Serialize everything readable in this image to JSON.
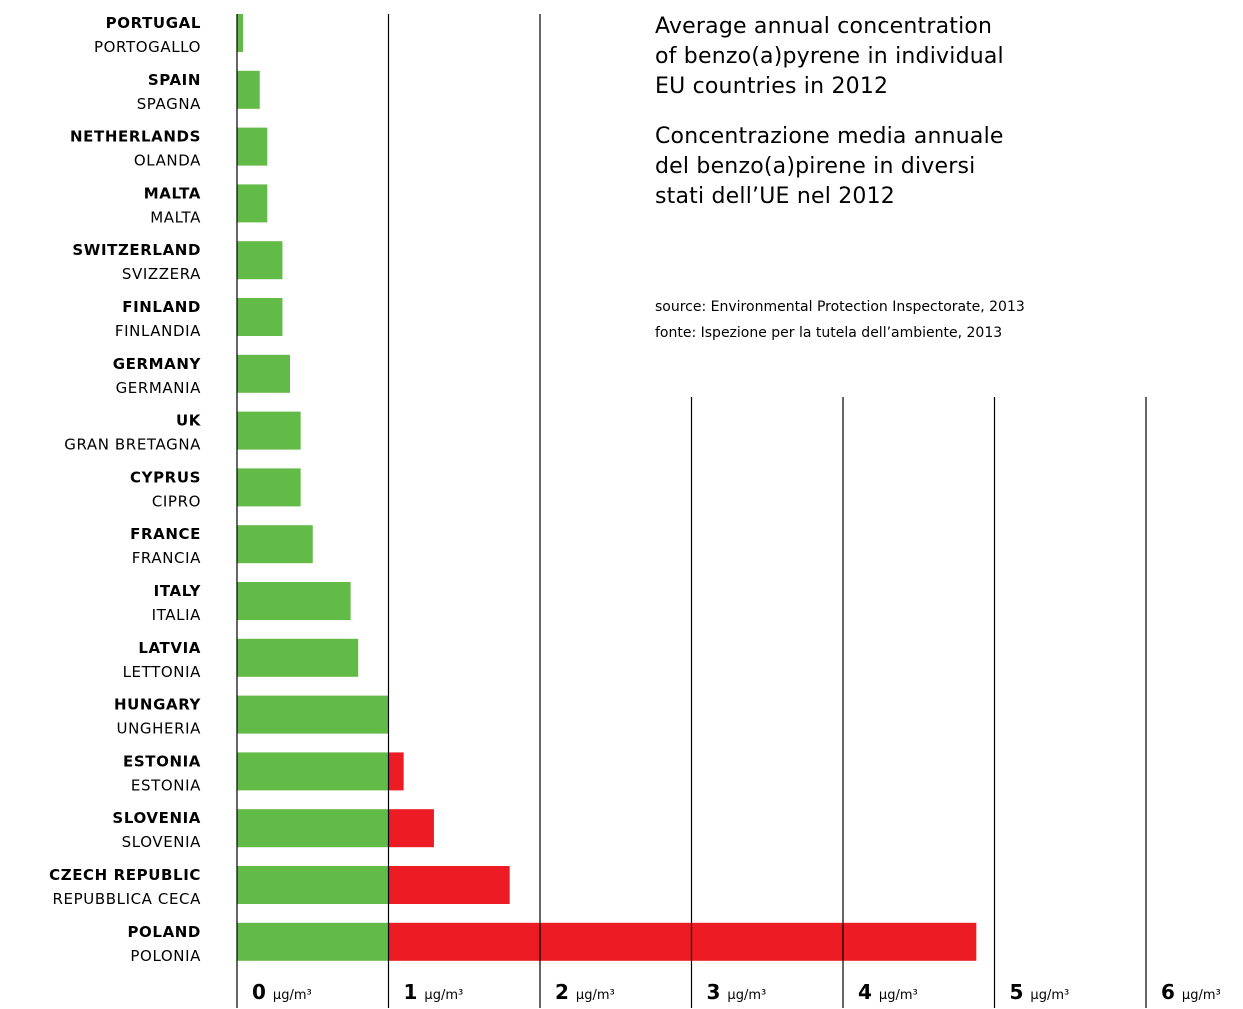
{
  "title_en": [
    "Average annual concentration",
    "of benzo(a)pyrene in individual",
    "EU countries in 2012"
  ],
  "title_it": [
    "Concentrazione media annuale",
    "del benzo(a)pirene in diversi",
    "stati dell’UE nel 2012"
  ],
  "source_en": "source: Environmental Protection Inspectorate, 2013",
  "source_it": "fonte: Ispezione per la tutela dell’ambiente, 2013",
  "colors": {
    "below_limit": "#63bb47",
    "above_limit": "#ed1c24",
    "axis": "#000000"
  },
  "chart_data": {
    "type": "bar",
    "orientation": "horizontal",
    "unit": "µg/m³",
    "xlim": [
      0,
      6
    ],
    "threshold": 1,
    "ticks": [
      0,
      1,
      2,
      3,
      4,
      5,
      6
    ],
    "categories": [
      {
        "en": "PORTUGAL",
        "it": "PORTOGALLO",
        "value": 0.04
      },
      {
        "en": "SPAIN",
        "it": "SPAGNA",
        "value": 0.15
      },
      {
        "en": "NETHERLANDS",
        "it": "OLANDA",
        "value": 0.2
      },
      {
        "en": "MALTA",
        "it": "MALTA",
        "value": 0.2
      },
      {
        "en": "SWITZERLAND",
        "it": "SVIZZERA",
        "value": 0.3
      },
      {
        "en": "FINLAND",
        "it": "FINLANDIA",
        "value": 0.3
      },
      {
        "en": "GERMANY",
        "it": "GERMANIA",
        "value": 0.35
      },
      {
        "en": "UK",
        "it": "GRAN BRETAGNA",
        "value": 0.42
      },
      {
        "en": "CYPRUS",
        "it": "CIPRO",
        "value": 0.42
      },
      {
        "en": "FRANCE",
        "it": "FRANCIA",
        "value": 0.5
      },
      {
        "en": "ITALY",
        "it": "ITALIA",
        "value": 0.75
      },
      {
        "en": "LATVIA",
        "it": "LETTONIA",
        "value": 0.8
      },
      {
        "en": "HUNGARY",
        "it": "UNGHERIA",
        "value": 1.0
      },
      {
        "en": "ESTONIA",
        "it": "ESTONIA",
        "value": 1.1
      },
      {
        "en": "SLOVENIA",
        "it": "SLOVENIA",
        "value": 1.3
      },
      {
        "en": "CZECH REPUBLIC",
        "it": "REPUBBLICA CECA",
        "value": 1.8
      },
      {
        "en": "POLAND",
        "it": "POLONIA",
        "value": 4.88
      }
    ]
  }
}
